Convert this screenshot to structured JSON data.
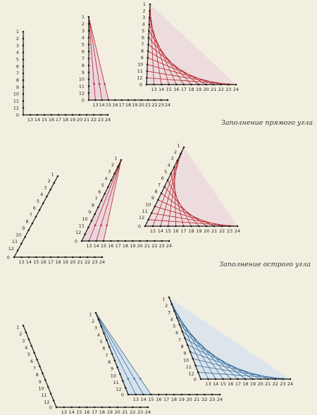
{
  "captions": [
    "Заполнение прямого угла",
    "Заполнение острого угла"
  ],
  "vertical_labels": [
    "1",
    "2",
    "3",
    "4",
    "5",
    "6",
    "7",
    "8",
    "9",
    "10",
    "11",
    "12"
  ],
  "vertex_label": "0",
  "horizontal_labels": [
    "13",
    "14",
    "15",
    "16",
    "17",
    "18",
    "19",
    "20",
    "21",
    "22",
    "23",
    "24"
  ],
  "colors": {
    "background": "#f3efe0",
    "axis": "#1a1a1a",
    "red_thread": "#b8252e",
    "red_fill": "#ead7dc",
    "blue_thread": "#3d6f9e",
    "blue_fill": "#d4e2ee"
  },
  "rows": [
    {
      "name": "right-angle",
      "color": "red"
    },
    {
      "name": "acute-angle",
      "color": "red"
    },
    {
      "name": "obtuse-angle",
      "color": "blue"
    }
  ]
}
